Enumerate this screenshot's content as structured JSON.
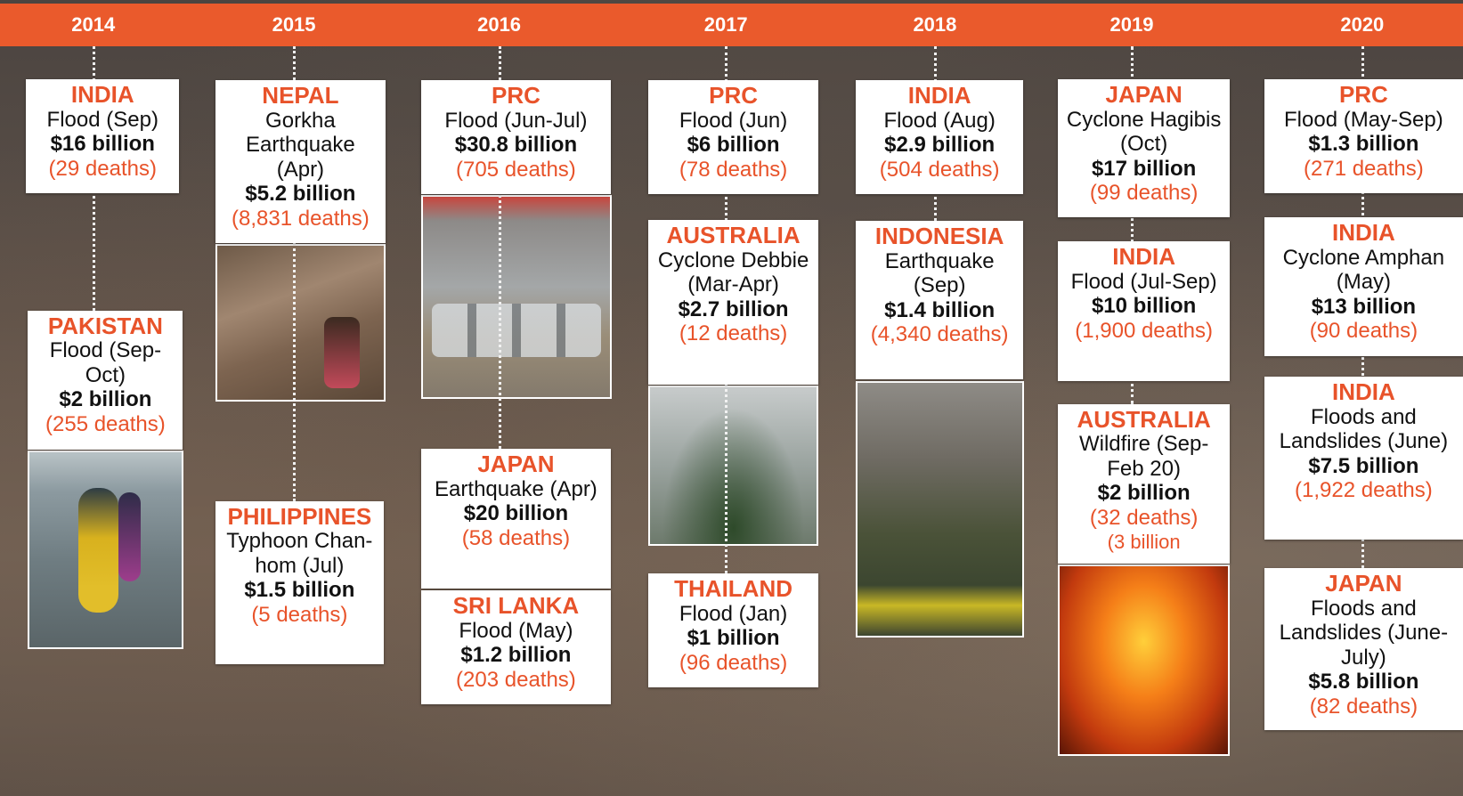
{
  "columns": [
    {
      "year": "2014",
      "events": [
        {
          "country": "INDIA",
          "event": "Flood (Sep)",
          "cost": "$16 billion",
          "deaths": "(29 deaths)"
        },
        {
          "country": "PAKISTAN",
          "event": "Flood (Sep-Oct)",
          "cost": "$2 billion",
          "deaths": "(255 deaths)"
        }
      ]
    },
    {
      "year": "2015",
      "events": [
        {
          "country": "NEPAL",
          "event": "Gorkha Earthquake (Apr)",
          "cost": "$5.2 billion",
          "deaths": "(8,831 deaths)"
        },
        {
          "country": "PHILIPPINES",
          "event": "Typhoon Chan-hom (Jul)",
          "cost": "$1.5 billion",
          "deaths": "(5 deaths)"
        }
      ]
    },
    {
      "year": "2016",
      "events": [
        {
          "country": "PRC",
          "event": "Flood (Jun-Jul)",
          "cost": "$30.8 billion",
          "deaths": "(705 deaths)"
        },
        {
          "country": "JAPAN",
          "event": "Earthquake (Apr)",
          "cost": "$20 billion",
          "deaths": "(58 deaths)"
        },
        {
          "country": "SRI LANKA",
          "event": "Flood (May)",
          "cost": "$1.2 billion",
          "deaths": "(203 deaths)"
        }
      ]
    },
    {
      "year": "2017",
      "events": [
        {
          "country": "PRC",
          "event": "Flood (Jun)",
          "cost": "$6 billion",
          "deaths": "(78 deaths)"
        },
        {
          "country": "AUSTRALIA",
          "event": "Cyclone Debbie (Mar-Apr)",
          "cost": "$2.7 billion",
          "deaths": "(12 deaths)"
        },
        {
          "country": "THAILAND",
          "event": "Flood (Jan)",
          "cost": "$1 billion",
          "deaths": "(96 deaths)"
        }
      ]
    },
    {
      "year": "2018",
      "events": [
        {
          "country": "INDIA",
          "event": "Flood (Aug)",
          "cost": "$2.9 billion",
          "deaths": "(504 deaths)"
        },
        {
          "country": "INDONESIA",
          "event": "Earthquake (Sep)",
          "cost": "$1.4 billion",
          "deaths": "(4,340 deaths)"
        }
      ]
    },
    {
      "year": "2019",
      "events": [
        {
          "country": "JAPAN",
          "event": "Cyclone Hagibis (Oct)",
          "cost": "$17 billion",
          "deaths": "(99 deaths)"
        },
        {
          "country": "INDIA",
          "event": "Flood (Jul-Sep)",
          "cost": "$10 billion",
          "deaths": "(1,900 deaths)"
        },
        {
          "country": "AUSTRALIA",
          "event": "Wildfire (Sep-Feb 20)",
          "cost": "$2 billion",
          "deaths": "(32 deaths)",
          "note": "(3 billion"
        }
      ]
    },
    {
      "year": "2020",
      "events": [
        {
          "country": "PRC",
          "event": "Flood (May-Sep)",
          "cost": "$1.3 billion",
          "deaths": "(271 deaths)"
        },
        {
          "country": "INDIA",
          "event": "Cyclone Amphan (May)",
          "cost": "$13 billion",
          "deaths": "(90 deaths)"
        },
        {
          "country": "INDIA",
          "event": "Floods and Landslides (June)",
          "cost": "$7.5 billion",
          "deaths": "(1,922 deaths)"
        },
        {
          "country": "JAPAN",
          "event": "Floods and Landslides (June-July)",
          "cost": "$5.8 billion",
          "deaths": "(82 deaths)"
        }
      ]
    }
  ]
}
